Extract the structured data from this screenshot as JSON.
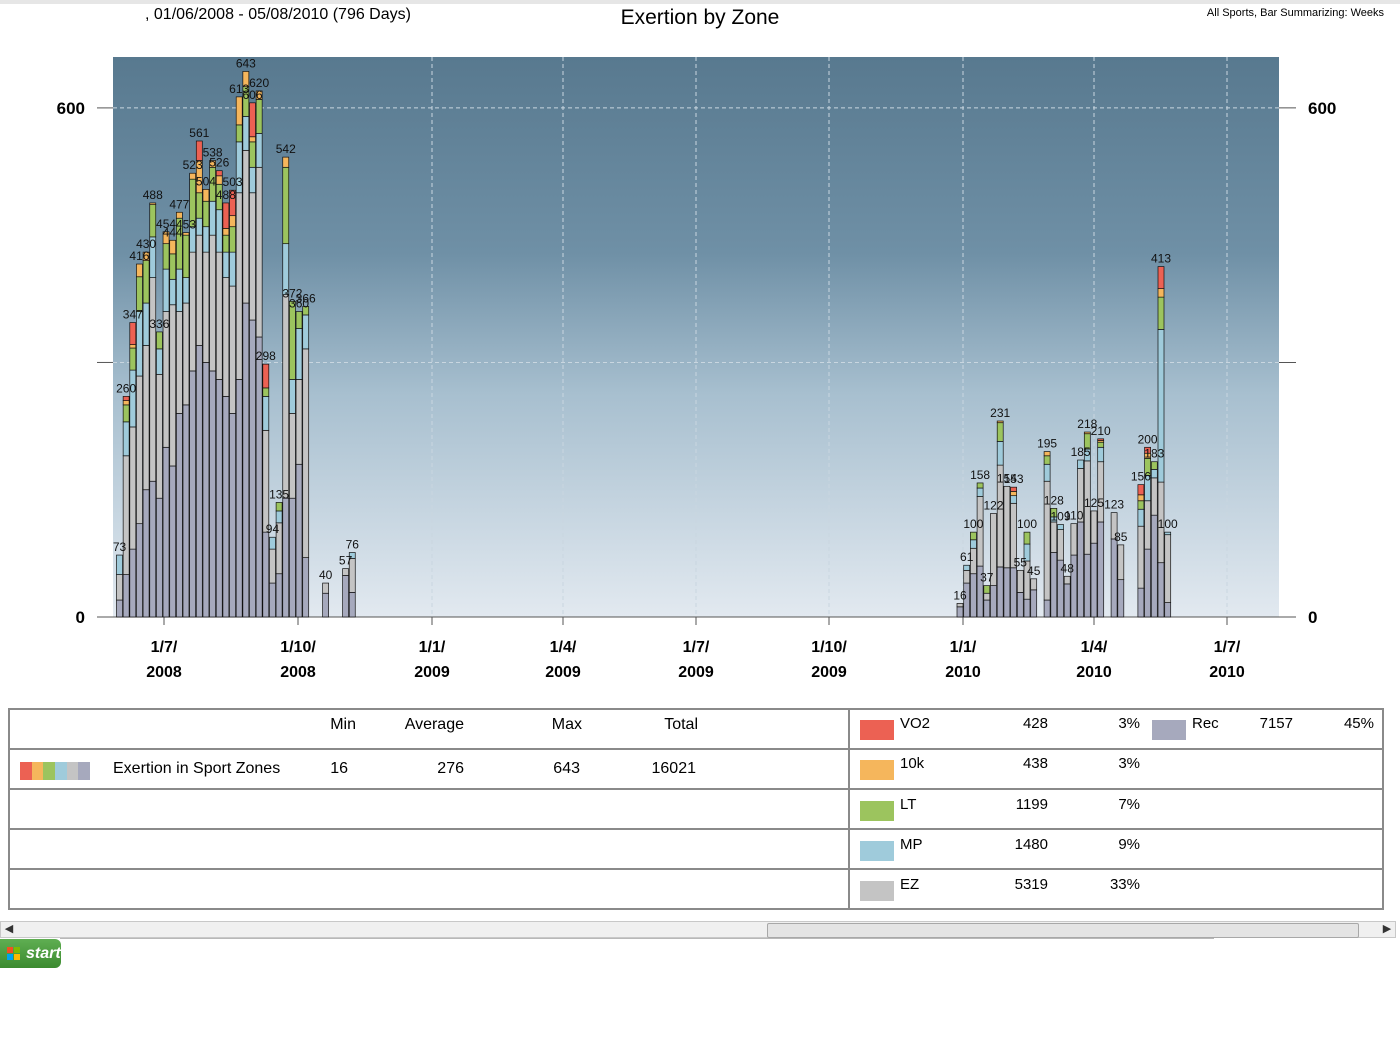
{
  "header": {
    "date_range": ", 01/06/2008 - 05/08/2010 (796 Days)",
    "title": "Exertion by Zone",
    "subtitle_right": "All Sports, Bar Summarizing: Weeks"
  },
  "colors": {
    "VO2": "#ec6153",
    "10k": "#f5b65c",
    "LT": "#9cc45e",
    "MP": "#9fcbdb",
    "EZ": "#c4c4c4",
    "Rec": "#a6a9bd",
    "plot_top": "#5b7f98",
    "plot_bottom": "#dbe4ec"
  },
  "chart_data": {
    "type": "bar",
    "stacked": true,
    "title": "Exertion by Zone",
    "ylim": [
      0,
      660
    ],
    "y_ticks": [
      0,
      600
    ],
    "x_tick_labels": [
      [
        "1/7/",
        "2008"
      ],
      [
        "1/10/",
        "2008"
      ],
      [
        "1/1/",
        "2009"
      ],
      [
        "1/4/",
        "2009"
      ],
      [
        "1/7/",
        "2009"
      ],
      [
        "1/10/",
        "2009"
      ],
      [
        "1/1/",
        "2010"
      ],
      [
        "1/4/",
        "2010"
      ],
      [
        "1/7/",
        "2010"
      ]
    ],
    "series_names": [
      "Rec",
      "EZ",
      "MP",
      "LT",
      "10k",
      "VO2"
    ],
    "bars": [
      {
        "week": 0,
        "total": 73,
        "values": [
          20,
          30,
          23,
          0,
          0,
          0
        ]
      },
      {
        "week": 1,
        "total": 260,
        "values": [
          50,
          140,
          40,
          20,
          5,
          5
        ]
      },
      {
        "week": 2,
        "total": 347,
        "values": [
          80,
          144,
          67,
          26,
          4,
          26
        ]
      },
      {
        "week": 3,
        "total": 416,
        "values": [
          110,
          174,
          76,
          41,
          15,
          0
        ]
      },
      {
        "week": 4,
        "total": 430,
        "values": [
          150,
          170,
          50,
          50,
          10,
          0
        ]
      },
      {
        "week": 5,
        "total": 488,
        "values": [
          160,
          240,
          48,
          38,
          2,
          0
        ]
      },
      {
        "week": 6,
        "total": 336,
        "values": [
          140,
          146,
          30,
          20,
          0,
          0
        ]
      },
      {
        "week": 7,
        "total": 454,
        "values": [
          200,
          160,
          50,
          30,
          14,
          0
        ]
      },
      {
        "week": 8,
        "total": 444,
        "values": [
          178,
          190,
          30,
          30,
          16,
          0
        ]
      },
      {
        "week": 9,
        "total": 477,
        "values": [
          240,
          120,
          50,
          60,
          7,
          0
        ]
      },
      {
        "week": 10,
        "total": 453,
        "values": [
          250,
          120,
          30,
          50,
          3,
          0
        ]
      },
      {
        "week": 11,
        "total": 523,
        "values": [
          290,
          140,
          30,
          56,
          7,
          0
        ]
      },
      {
        "week": 12,
        "total": 561,
        "values": [
          320,
          130,
          20,
          30,
          38,
          23
        ]
      },
      {
        "week": 13,
        "total": 504,
        "values": [
          300,
          130,
          30,
          30,
          14,
          0
        ]
      },
      {
        "week": 14,
        "total": 538,
        "values": [
          290,
          160,
          40,
          40,
          8,
          0
        ]
      },
      {
        "week": 15,
        "total": 526,
        "values": [
          280,
          150,
          50,
          30,
          10,
          6
        ]
      },
      {
        "week": 16,
        "total": 488,
        "values": [
          260,
          140,
          30,
          20,
          8,
          30
        ]
      },
      {
        "week": 17,
        "total": 503,
        "values": [
          240,
          150,
          40,
          30,
          13,
          30
        ]
      },
      {
        "week": 18,
        "total": 613,
        "values": [
          280,
          220,
          60,
          20,
          33,
          0
        ]
      },
      {
        "week": 19,
        "total": 643,
        "values": [
          370,
          180,
          40,
          35,
          18,
          0
        ]
      },
      {
        "week": 20,
        "total": 606,
        "values": [
          350,
          150,
          30,
          30,
          6,
          40
        ]
      },
      {
        "week": 21,
        "total": 620,
        "values": [
          330,
          200,
          40,
          40,
          10,
          0
        ]
      },
      {
        "week": 22,
        "total": 298,
        "values": [
          100,
          120,
          40,
          10,
          0,
          28
        ]
      },
      {
        "week": 23,
        "total": 94,
        "values": [
          40,
          40,
          14,
          0,
          0,
          0
        ]
      },
      {
        "week": 24,
        "total": 135,
        "values": [
          51,
          60,
          14,
          10,
          0,
          0
        ]
      },
      {
        "week": 25,
        "total": 542,
        "values": [
          140,
          240,
          60,
          90,
          12,
          0
        ]
      },
      {
        "week": 26,
        "total": 372,
        "values": [
          140,
          100,
          40,
          92,
          0,
          0
        ]
      },
      {
        "week": 27,
        "total": 360,
        "values": [
          180,
          100,
          60,
          20,
          0,
          0
        ]
      },
      {
        "week": 28,
        "total": 366,
        "values": [
          70,
          246,
          40,
          10,
          0,
          0
        ]
      },
      {
        "week": 31,
        "total": 40,
        "values": [
          28,
          12,
          0,
          0,
          0,
          0
        ]
      },
      {
        "week": 34,
        "total": 57,
        "values": [
          49,
          8,
          0,
          0,
          0,
          0
        ]
      },
      {
        "week": 35,
        "total": 76,
        "values": [
          29,
          40,
          7,
          0,
          0,
          0
        ]
      },
      {
        "week": 109,
        "total": 16,
        "values": [
          12,
          4,
          0,
          0,
          0,
          0
        ]
      },
      {
        "week": 110,
        "total": 61,
        "values": [
          40,
          15,
          6,
          0,
          0,
          0
        ]
      },
      {
        "week": 111,
        "total": 100,
        "values": [
          51,
          30,
          10,
          9,
          0,
          0
        ]
      },
      {
        "week": 112,
        "total": 158,
        "values": [
          60,
          82,
          10,
          6,
          0,
          0
        ]
      },
      {
        "week": 113,
        "total": 37,
        "values": [
          20,
          8,
          0,
          9,
          0,
          0
        ]
      },
      {
        "week": 114,
        "total": 122,
        "values": [
          37,
          85,
          0,
          0,
          0,
          0
        ]
      },
      {
        "week": 115,
        "total": 231,
        "values": [
          59,
          120,
          28,
          22,
          2,
          0
        ]
      },
      {
        "week": 116,
        "total": 154,
        "values": [
          58,
          96,
          0,
          0,
          0,
          0
        ]
      },
      {
        "week": 117,
        "total": 153,
        "values": [
          58,
          76,
          9,
          0,
          5,
          5
        ]
      },
      {
        "week": 118,
        "total": 55,
        "values": [
          29,
          26,
          0,
          0,
          0,
          0
        ]
      },
      {
        "week": 119,
        "total": 100,
        "values": [
          21,
          45,
          20,
          14,
          0,
          0
        ]
      },
      {
        "week": 120,
        "total": 45,
        "values": [
          32,
          13,
          0,
          0,
          0,
          0
        ]
      },
      {
        "week": 122,
        "total": 195,
        "values": [
          20,
          140,
          20,
          10,
          5,
          0
        ]
      },
      {
        "week": 123,
        "total": 128,
        "values": [
          76,
          36,
          6,
          10,
          0,
          0
        ]
      },
      {
        "week": 124,
        "total": 109,
        "values": [
          67,
          36,
          6,
          0,
          0,
          0
        ]
      },
      {
        "week": 125,
        "total": 48,
        "values": [
          39,
          9,
          0,
          0,
          0,
          0
        ]
      },
      {
        "week": 126,
        "total": 110,
        "values": [
          73,
          37,
          0,
          0,
          0,
          0
        ]
      },
      {
        "week": 127,
        "total": 185,
        "values": [
          112,
          63,
          10,
          0,
          0,
          0
        ]
      },
      {
        "week": 128,
        "total": 218,
        "values": [
          74,
          110,
          14,
          18,
          2,
          0
        ]
      },
      {
        "week": 129,
        "total": 125,
        "values": [
          87,
          38,
          0,
          0,
          0,
          0
        ]
      },
      {
        "week": 130,
        "total": 210,
        "values": [
          112,
          71,
          17,
          6,
          2,
          2
        ]
      },
      {
        "week": 132,
        "total": 123,
        "values": [
          92,
          31,
          0,
          0,
          0,
          0
        ]
      },
      {
        "week": 133,
        "total": 85,
        "values": [
          44,
          41,
          0,
          0,
          0,
          0
        ]
      },
      {
        "week": 136,
        "total": 156,
        "values": [
          34,
          73,
          20,
          10,
          7,
          12
        ]
      },
      {
        "week": 137,
        "total": 200,
        "values": [
          80,
          57,
          30,
          20,
          6,
          7
        ]
      },
      {
        "week": 138,
        "total": 183,
        "values": [
          120,
          44,
          10,
          9,
          0,
          0
        ]
      },
      {
        "week": 139,
        "total": 413,
        "values": [
          64,
          95,
          180,
          38,
          10,
          26
        ]
      },
      {
        "week": 140,
        "total": 100,
        "values": [
          17,
          80,
          3,
          0,
          0,
          0
        ]
      }
    ]
  },
  "summary": {
    "headers": {
      "min": "Min",
      "average": "Average",
      "max": "Max",
      "total": "Total"
    },
    "row_label": "Exertion in Sport Zones",
    "min": "16",
    "average": "276",
    "max": "643",
    "total": "16021",
    "zones": [
      {
        "name": "VO2",
        "value": "428",
        "pct": "3%"
      },
      {
        "name": "10k",
        "value": "438",
        "pct": "3%"
      },
      {
        "name": "LT",
        "value": "1199",
        "pct": "7%"
      },
      {
        "name": "MP",
        "value": "1480",
        "pct": "9%"
      },
      {
        "name": "EZ",
        "value": "5319",
        "pct": "33%"
      },
      {
        "name": "Rec",
        "value": "7157",
        "pct": "45%"
      }
    ]
  },
  "taskbar": {
    "start_label": "start"
  }
}
